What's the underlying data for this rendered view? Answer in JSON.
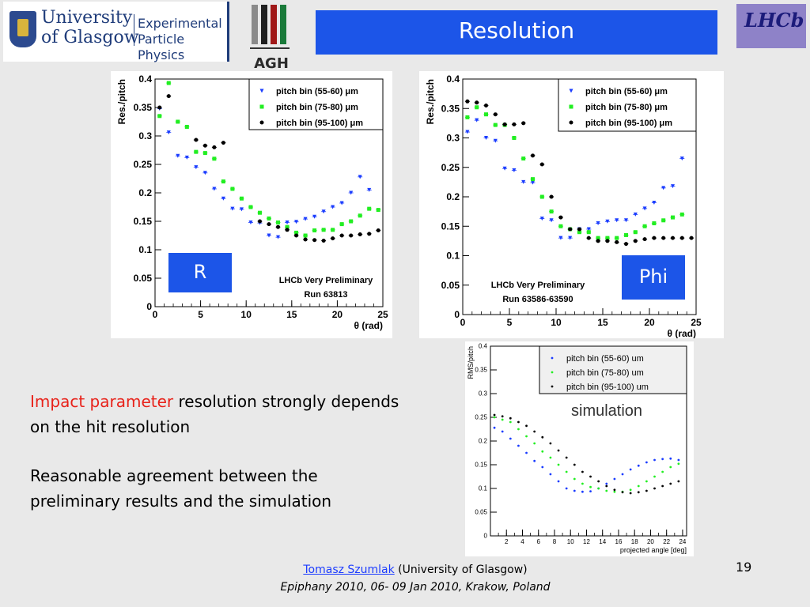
{
  "header": {
    "glasgow_line1": "University",
    "glasgow_line2": "of Glasgow",
    "glasgow_dept1": "Experimental",
    "glasgow_dept2": "Particle Physics",
    "agh_text": "AGH",
    "lhcb_text": "LHCb",
    "title": "Resolution"
  },
  "colors": {
    "title_bg": "#1c55e8",
    "accent_red": "#e8221a",
    "series_blue": "#1a3cff",
    "series_green": "#22ee22",
    "series_black": "#000000"
  },
  "body": {
    "para1_red": "Impact parameter",
    "para1_rest": " resolution strongly depends on the hit resolution",
    "para2": "Reasonable agreement between the preliminary results and the simulation"
  },
  "footer": {
    "author": "Tomasz Szumlak",
    "affiliation": " (University of Glasgow)",
    "event": "Epiphany 2010, 06- 09 Jan 2010, Krakow, Poland",
    "page": "19"
  },
  "chart_data": [
    {
      "type": "scatter",
      "label_box": "R",
      "ylabel": "Res./pitch",
      "xlabel": "θ (rad)",
      "annotation1": "LHCb Very Preliminary",
      "annotation2": "Run 63813",
      "xlim": [
        0,
        25
      ],
      "ylim": [
        0,
        0.4
      ],
      "xticks": [
        "0",
        "5",
        "10",
        "15",
        "20",
        "25"
      ],
      "yticks": [
        "0",
        "0.05",
        "0.1",
        "0.15",
        "0.2",
        "0.25",
        "0.3",
        "0.35",
        "0.4"
      ],
      "xtick_values": [
        0,
        5,
        10,
        15,
        20,
        25
      ],
      "ytick_values": [
        0,
        0.05,
        0.1,
        0.15,
        0.2,
        0.25,
        0.3,
        0.35,
        0.4
      ],
      "legend": "top-right",
      "x": [
        0.5,
        1.5,
        2.5,
        3.5,
        4.5,
        5.5,
        6.5,
        7.5,
        8.5,
        9.5,
        10.5,
        11.5,
        12.5,
        13.5,
        14.5,
        15.5,
        16.5,
        17.5,
        18.5,
        19.5,
        20.5,
        21.5,
        22.5,
        23.5,
        24.5
      ],
      "series": [
        {
          "name": "pitch bin (55-60) μm",
          "color": "#1a3cff",
          "marker": "triangle",
          "values": [
            0.348,
            0.306,
            0.265,
            0.262,
            0.245,
            0.235,
            0.207,
            0.19,
            0.172,
            0.171,
            0.148,
            0.147,
            0.125,
            0.122,
            0.148,
            0.149,
            0.154,
            0.158,
            0.167,
            0.175,
            0.182,
            0.2,
            0.228,
            0.205,
            null
          ]
        },
        {
          "name": "pitch bin (75-80) μm",
          "color": "#22ee22",
          "marker": "square",
          "values": [
            0.335,
            0.393,
            0.325,
            0.316,
            0.272,
            0.27,
            0.26,
            0.22,
            0.207,
            0.19,
            0.175,
            0.165,
            0.155,
            0.148,
            0.14,
            0.13,
            0.125,
            0.134,
            0.135,
            0.135,
            0.145,
            0.15,
            0.16,
            0.172,
            0.17
          ]
        },
        {
          "name": "pitch bin (95-100) μm",
          "color": "#000000",
          "marker": "circle",
          "values": [
            0.35,
            0.37,
            null,
            null,
            0.293,
            0.283,
            0.28,
            0.288,
            null,
            null,
            null,
            0.15,
            0.145,
            0.14,
            0.135,
            0.125,
            0.118,
            0.117,
            0.116,
            0.12,
            0.125,
            0.125,
            0.127,
            0.128,
            0.134
          ]
        }
      ]
    },
    {
      "type": "scatter",
      "label_box": "Phi",
      "ylabel": "Res./pitch",
      "xlabel": "θ (rad)",
      "annotation1": "LHCb Very Preliminary",
      "annotation2": "Run 63586-63590",
      "xlim": [
        0,
        25
      ],
      "ylim": [
        0,
        0.4
      ],
      "xticks": [
        "0",
        "5",
        "10",
        "15",
        "20",
        "25"
      ],
      "yticks": [
        "0",
        "0.05",
        "0.1",
        "0.15",
        "0.2",
        "0.25",
        "0.3",
        "0.35",
        "0.4"
      ],
      "xtick_values": [
        0,
        5,
        10,
        15,
        20,
        25
      ],
      "ytick_values": [
        0,
        0.05,
        0.1,
        0.15,
        0.2,
        0.25,
        0.3,
        0.35,
        0.4
      ],
      "legend": "top-right",
      "x": [
        0.5,
        1.5,
        2.5,
        3.5,
        4.5,
        5.5,
        6.5,
        7.5,
        8.5,
        9.5,
        10.5,
        11.5,
        12.5,
        13.5,
        14.5,
        15.5,
        16.5,
        17.5,
        18.5,
        19.5,
        20.5,
        21.5,
        22.5,
        23.5,
        24.5
      ],
      "series": [
        {
          "name": "pitch bin (55-60) μm",
          "color": "#1a3cff",
          "marker": "triangle",
          "values": [
            0.31,
            0.33,
            0.3,
            0.295,
            0.248,
            0.245,
            0.225,
            0.224,
            0.163,
            0.16,
            0.13,
            0.13,
            0.145,
            0.145,
            0.155,
            0.158,
            0.16,
            0.16,
            0.17,
            0.18,
            0.19,
            0.215,
            0.218,
            0.265,
            null
          ]
        },
        {
          "name": "pitch bin (75-80) μm",
          "color": "#22ee22",
          "marker": "square",
          "values": [
            0.335,
            0.352,
            0.34,
            0.322,
            0.322,
            0.3,
            0.265,
            0.23,
            0.2,
            0.175,
            0.15,
            0.145,
            0.14,
            0.14,
            0.13,
            0.13,
            0.13,
            0.135,
            0.14,
            0.15,
            0.155,
            0.16,
            0.165,
            0.17,
            null
          ]
        },
        {
          "name": "pitch bin (95-100) μm",
          "color": "#000000",
          "marker": "circle",
          "values": [
            0.362,
            0.36,
            0.355,
            0.34,
            0.323,
            0.323,
            0.325,
            0.27,
            0.255,
            0.2,
            0.165,
            0.145,
            0.145,
            0.13,
            0.125,
            0.125,
            0.123,
            0.12,
            0.125,
            0.128,
            0.13,
            0.13,
            0.13,
            0.13,
            0.13
          ]
        }
      ]
    },
    {
      "type": "scatter",
      "title": "simulation",
      "ylabel": "RMS/pitch",
      "xlabel": "projected angle [deg]",
      "xlim": [
        0,
        24.5
      ],
      "ylim": [
        0,
        0.4
      ],
      "xticks": [
        "2",
        "4",
        "6",
        "8",
        "10",
        "12",
        "14",
        "16",
        "18",
        "20",
        "22",
        "24"
      ],
      "xtick_values": [
        2,
        4,
        6,
        8,
        10,
        12,
        14,
        16,
        18,
        20,
        22,
        24
      ],
      "yticks": [
        "0",
        "0.05",
        "0.1",
        "0.15",
        "0.2",
        "0.25",
        "0.3",
        "0.35",
        "0.4"
      ],
      "ytick_values": [
        0,
        0.05,
        0.1,
        0.15,
        0.2,
        0.25,
        0.3,
        0.35,
        0.4
      ],
      "legend": "top-right",
      "x": [
        0.5,
        1.5,
        2.5,
        3.5,
        4.5,
        5.5,
        6.5,
        7.5,
        8.5,
        9.5,
        10.5,
        11.5,
        12.5,
        13.5,
        14.5,
        15.5,
        16.5,
        17.5,
        18.5,
        19.5,
        20.5,
        21.5,
        22.5,
        23.5
      ],
      "series": [
        {
          "name": "pitch bin (55-60) um",
          "color": "#1a3cff",
          "marker": "dot",
          "values": [
            0.228,
            0.22,
            0.205,
            0.19,
            0.175,
            0.158,
            0.145,
            0.13,
            0.115,
            0.1,
            0.095,
            0.093,
            0.094,
            0.1,
            0.11,
            0.12,
            0.13,
            0.14,
            0.148,
            0.155,
            0.16,
            0.162,
            0.163,
            0.16
          ]
        },
        {
          "name": "pitch bin (75-80) um",
          "color": "#22ee22",
          "marker": "dot",
          "values": [
            0.25,
            0.245,
            0.24,
            0.225,
            0.21,
            0.195,
            0.178,
            0.165,
            0.15,
            0.135,
            0.12,
            0.11,
            0.103,
            0.1,
            0.095,
            0.093,
            0.093,
            0.097,
            0.105,
            0.115,
            0.125,
            0.135,
            0.145,
            0.152
          ]
        },
        {
          "name": "pitch bin (95-100) um",
          "color": "#000000",
          "marker": "dot",
          "values": [
            0.255,
            0.252,
            0.248,
            0.24,
            0.232,
            0.22,
            0.208,
            0.195,
            0.18,
            0.165,
            0.15,
            0.135,
            0.125,
            0.115,
            0.105,
            0.097,
            0.092,
            0.09,
            0.092,
            0.095,
            0.1,
            0.105,
            0.11,
            0.115
          ]
        }
      ]
    }
  ]
}
